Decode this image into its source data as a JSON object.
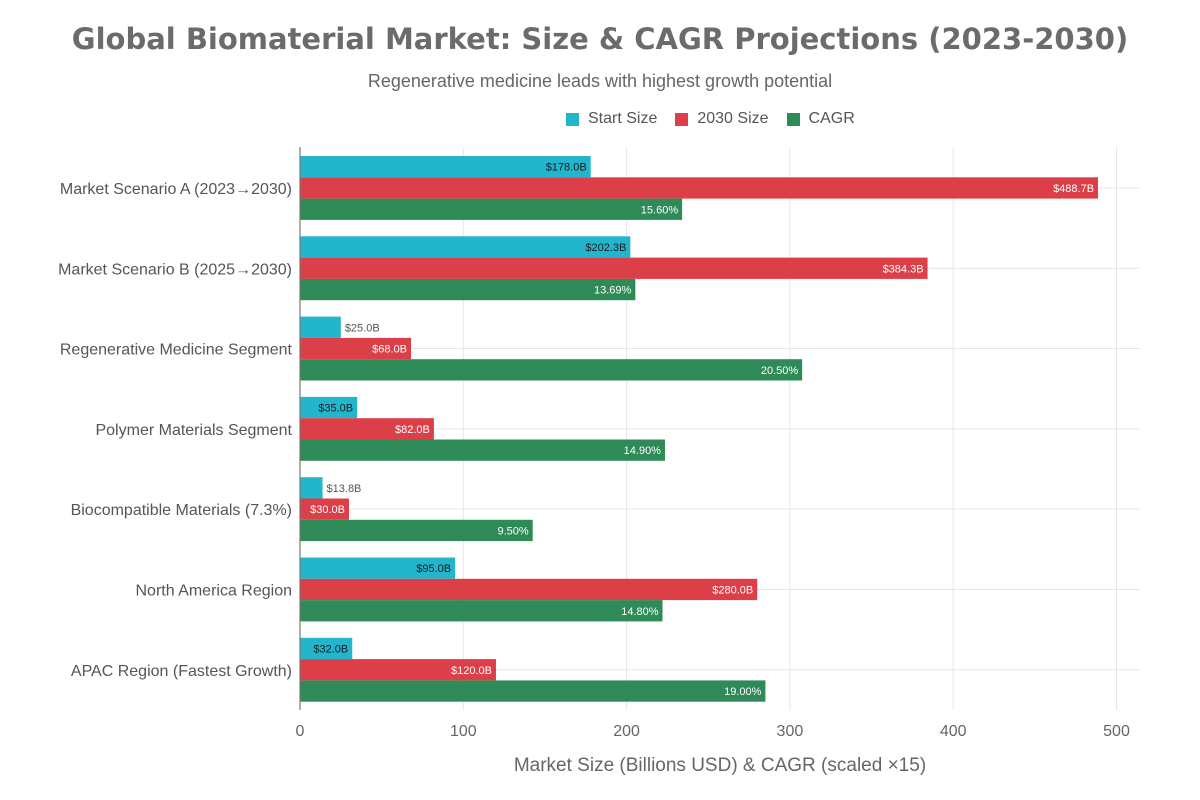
{
  "title": "Global Biomaterial Market: Size & CAGR Projections (2023-2030)",
  "subtitle": "Regenerative medicine leads with highest growth potential",
  "colors": {
    "start": "#22b5cc",
    "end": "#dc3f47",
    "cagr": "#2e8b57"
  },
  "legend": [
    {
      "key": "start",
      "label": "Start Size"
    },
    {
      "key": "end",
      "label": "2030 Size"
    },
    {
      "key": "cagr",
      "label": "CAGR"
    }
  ],
  "chart_data": {
    "type": "bar",
    "orientation": "horizontal",
    "xlabel": "Market Size (Billions USD) & CAGR (scaled ×15)",
    "ylabel": "",
    "xlim": [
      0,
      515
    ],
    "xticks": [
      0,
      100,
      200,
      300,
      400,
      500
    ],
    "grid": true,
    "legend_position": "top",
    "categories": [
      "Market Scenario A (2023→2030)",
      "Market Scenario B (2025→2030)",
      "Regenerative Medicine Segment",
      "Polymer Materials Segment",
      "Biocompatible Materials (7.3%)",
      "North America Region",
      "APAC Region (Fastest Growth)"
    ],
    "series": [
      {
        "name": "Start Size",
        "key": "start",
        "values": [
          178.0,
          202.3,
          25.0,
          35.0,
          13.8,
          95.0,
          32.0
        ],
        "labels": [
          "$178.0B",
          "$202.3B",
          "$25.0B",
          "$35.0B",
          "$13.8B",
          "$95.0B",
          "$32.0B"
        ]
      },
      {
        "name": "2030 Size",
        "key": "end",
        "values": [
          488.7,
          384.3,
          68.0,
          82.0,
          30.0,
          280.0,
          120.0
        ],
        "labels": [
          "$488.7B",
          "$384.3B",
          "$68.0B",
          "$82.0B",
          "$30.0B",
          "$280.0B",
          "$120.0B"
        ]
      },
      {
        "name": "CAGR",
        "key": "cagr",
        "values": [
          234.0,
          205.35,
          307.5,
          223.5,
          142.5,
          222.0,
          285.0
        ],
        "labels": [
          "15.60%",
          "13.69%",
          "20.50%",
          "14.90%",
          "9.50%",
          "14.80%",
          "19.00%"
        ]
      }
    ]
  }
}
